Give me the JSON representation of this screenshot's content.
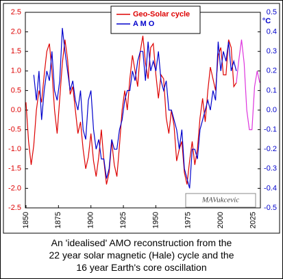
{
  "chart_data": {
    "type": "line",
    "legend": "top-center",
    "annotation": "MAVukcevic",
    "y2_label": "°C",
    "caption": [
      "An 'idealised'  AMO reconstruction from the",
      "22 year solar magnetic (Hale) cycle and the",
      "16 year Earth's core oscillation"
    ],
    "x": [
      1850,
      1852,
      1854,
      1856,
      1858,
      1860,
      1862,
      1864,
      1866,
      1868,
      1870,
      1872,
      1874,
      1876,
      1878,
      1880,
      1882,
      1884,
      1886,
      1888,
      1890,
      1892,
      1894,
      1896,
      1898,
      1900,
      1902,
      1904,
      1906,
      1908,
      1910,
      1912,
      1914,
      1916,
      1918,
      1920,
      1922,
      1924,
      1926,
      1928,
      1930,
      1932,
      1934,
      1936,
      1938,
      1940,
      1942,
      1944,
      1946,
      1948,
      1950,
      1952,
      1954,
      1956,
      1958,
      1960,
      1962,
      1964,
      1966,
      1968,
      1970,
      1972,
      1974,
      1976,
      1978,
      1980,
      1982,
      1984,
      1986,
      1988,
      1990,
      1992,
      1994,
      1996,
      1998,
      2000,
      2002,
      2004,
      2006,
      2008,
      2010,
      2012,
      2014,
      2016,
      2018,
      2020,
      2022,
      2024,
      2026,
      2028,
      2030
    ],
    "xlim": [
      1849.5,
      2030.5
    ],
    "xticks": [
      1850,
      1875,
      1900,
      1925,
      1950,
      1975,
      2000,
      2025
    ],
    "ylim": [
      -2.5,
      2.5
    ],
    "yticks": [
      {
        "value": -2.5,
        "label": "-2.5"
      },
      {
        "value": -2,
        "label": "-2.0"
      },
      -1.5,
      {
        "value": -1,
        "label": "-1.0"
      },
      -0.5,
      {
        "value": 0,
        "label": "0.0"
      },
      0.5,
      {
        "value": 1,
        "label": "1.0"
      },
      1.5,
      {
        "value": 2,
        "label": "2.0"
      },
      2.5
    ],
    "y2lim": [
      -0.5,
      0.5
    ],
    "y2ticks": [
      -0.5,
      -0.4,
      -0.3,
      -0.2,
      -0.1,
      {
        "value": 0,
        "label": "0.0"
      },
      0.1,
      0.2,
      0.3,
      0.4,
      0.5
    ],
    "series": [
      {
        "name": "Geo-Solar cycle",
        "color": "#dd0000",
        "values": [
          0.2,
          -0.8,
          -1.4,
          -0.9,
          0.0,
          0.5,
          0.2,
          0.9,
          1.5,
          1.7,
          1.0,
          0.0,
          -0.6,
          0.3,
          1.2,
          1.8,
          1.3,
          0.4,
          0.6,
          0.0,
          -0.6,
          -0.3,
          -1.0,
          -1.5,
          -1.2,
          -0.6,
          -1.3,
          -1.7,
          -1.2,
          -0.5,
          -1.3,
          -1.9,
          -1.6,
          -0.8,
          -1.4,
          -1.7,
          -0.9,
          0.0,
          0.5,
          0.0,
          0.8,
          1.4,
          1.0,
          0.6,
          1.5,
          1.9,
          1.2,
          0.8,
          1.6,
          1.7,
          0.9,
          0.3,
          0.9,
          0.8,
          -0.2,
          -0.6,
          0.0,
          -0.4,
          -1.3,
          -1.0,
          -0.8,
          -1.6,
          -1.9,
          -1.3,
          -0.8,
          -1.4,
          -1.0,
          -0.2,
          0.3,
          -0.3,
          0.5,
          1.1,
          0.8,
          0.5,
          1.4,
          1.6,
          0.9,
          0.9,
          1.8,
          1.6,
          0.6,
          0.7,
          null,
          null,
          null,
          null,
          null,
          null,
          null,
          null,
          null
        ]
      },
      {
        "name": "A M O",
        "color": "#0000cc",
        "axis": "y2",
        "values": [
          null,
          null,
          null,
          0.18,
          0.05,
          0.2,
          -0.05,
          0.1,
          0.2,
          0.15,
          0.3,
          0.1,
          0.05,
          0.15,
          0.42,
          0.3,
          0.2,
          0.1,
          0.15,
          0.05,
          0.0,
          0.1,
          -0.1,
          -0.15,
          0.05,
          0.1,
          -0.1,
          -0.2,
          -0.15,
          -0.25,
          -0.25,
          -0.35,
          -0.3,
          -0.15,
          -0.2,
          -0.2,
          -0.1,
          -0.05,
          0.05,
          0.1,
          0.1,
          0.2,
          0.15,
          0.25,
          0.3,
          0.3,
          0.15,
          0.35,
          0.2,
          0.25,
          0.2,
          0.3,
          0.15,
          0.1,
          0.15,
          0.0,
          0.0,
          -0.05,
          -0.1,
          -0.2,
          -0.1,
          -0.3,
          -0.35,
          -0.4,
          -0.2,
          -0.2,
          -0.25,
          -0.1,
          -0.05,
          0.0,
          0.05,
          0.0,
          0.1,
          0.05,
          0.35,
          0.2,
          0.3,
          0.25,
          0.35,
          0.2,
          0.25,
          0.2,
          null,
          null,
          null,
          null,
          null,
          null,
          null,
          null,
          null
        ]
      },
      {
        "color": "#dd33dd",
        "values": [
          null,
          null,
          null,
          null,
          null,
          null,
          null,
          null,
          null,
          null,
          null,
          null,
          null,
          null,
          null,
          null,
          null,
          null,
          null,
          null,
          null,
          null,
          null,
          null,
          null,
          null,
          null,
          null,
          null,
          null,
          null,
          null,
          null,
          null,
          null,
          null,
          null,
          null,
          null,
          null,
          null,
          null,
          null,
          null,
          null,
          null,
          null,
          null,
          null,
          null,
          null,
          null,
          null,
          null,
          null,
          null,
          null,
          null,
          null,
          null,
          null,
          null,
          null,
          null,
          null,
          null,
          null,
          null,
          null,
          null,
          null,
          null,
          null,
          null,
          null,
          null,
          null,
          null,
          null,
          null,
          null,
          0.7,
          1.3,
          1.8,
          1.2,
          0.0,
          -0.5,
          -0.5,
          0.6,
          1.0,
          0.7
        ]
      }
    ]
  }
}
